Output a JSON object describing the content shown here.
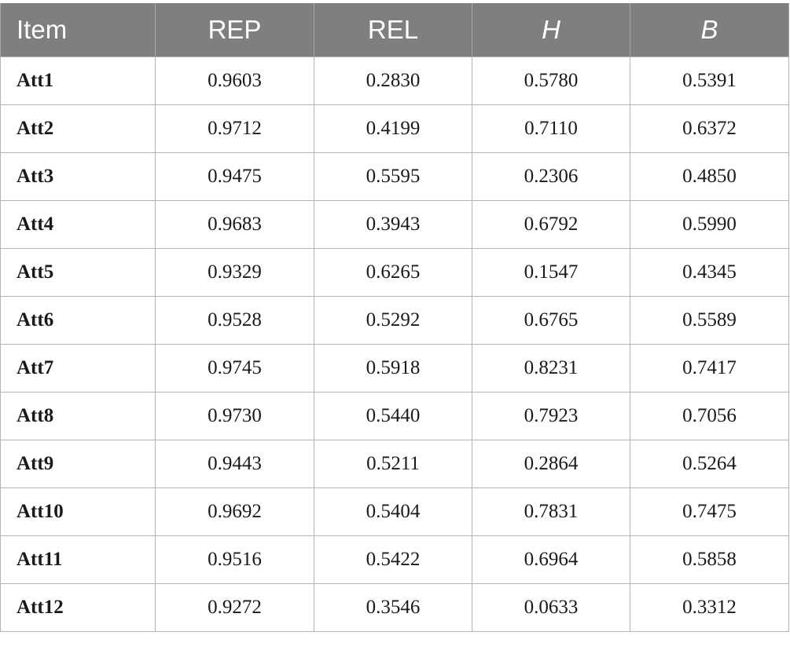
{
  "table": {
    "headers": [
      "Item",
      "REP",
      "REL",
      "H",
      "B"
    ],
    "rows": [
      [
        "Att1",
        "0.9603",
        "0.2830",
        "0.5780",
        "0.5391"
      ],
      [
        "Att2",
        "0.9712",
        "0.4199",
        "0.7110",
        "0.6372"
      ],
      [
        "Att3",
        "0.9475",
        "0.5595",
        "0.2306",
        "0.4850"
      ],
      [
        "Att4",
        "0.9683",
        "0.3943",
        "0.6792",
        "0.5990"
      ],
      [
        "Att5",
        "0.9329",
        "0.6265",
        "0.1547",
        "0.4345"
      ],
      [
        "Att6",
        "0.9528",
        "0.5292",
        "0.6765",
        "0.5589"
      ],
      [
        "Att7",
        "0.9745",
        "0.5918",
        "0.8231",
        "0.7417"
      ],
      [
        "Att8",
        "0.9730",
        "0.5440",
        "0.7923",
        "0.7056"
      ],
      [
        "Att9",
        "0.9443",
        "0.5211",
        "0.2864",
        "0.5264"
      ],
      [
        "Att10",
        "0.9692",
        "0.5404",
        "0.7831",
        "0.7475"
      ],
      [
        "Att11",
        "0.9516",
        "0.5422",
        "0.6964",
        "0.5858"
      ],
      [
        "Att12",
        "0.9272",
        "0.3546",
        "0.0633",
        "0.3312"
      ]
    ]
  },
  "colors": {
    "header_bg": "#7f7f7f",
    "header_text": "#ffffff",
    "grid": "#b4b4b4"
  }
}
